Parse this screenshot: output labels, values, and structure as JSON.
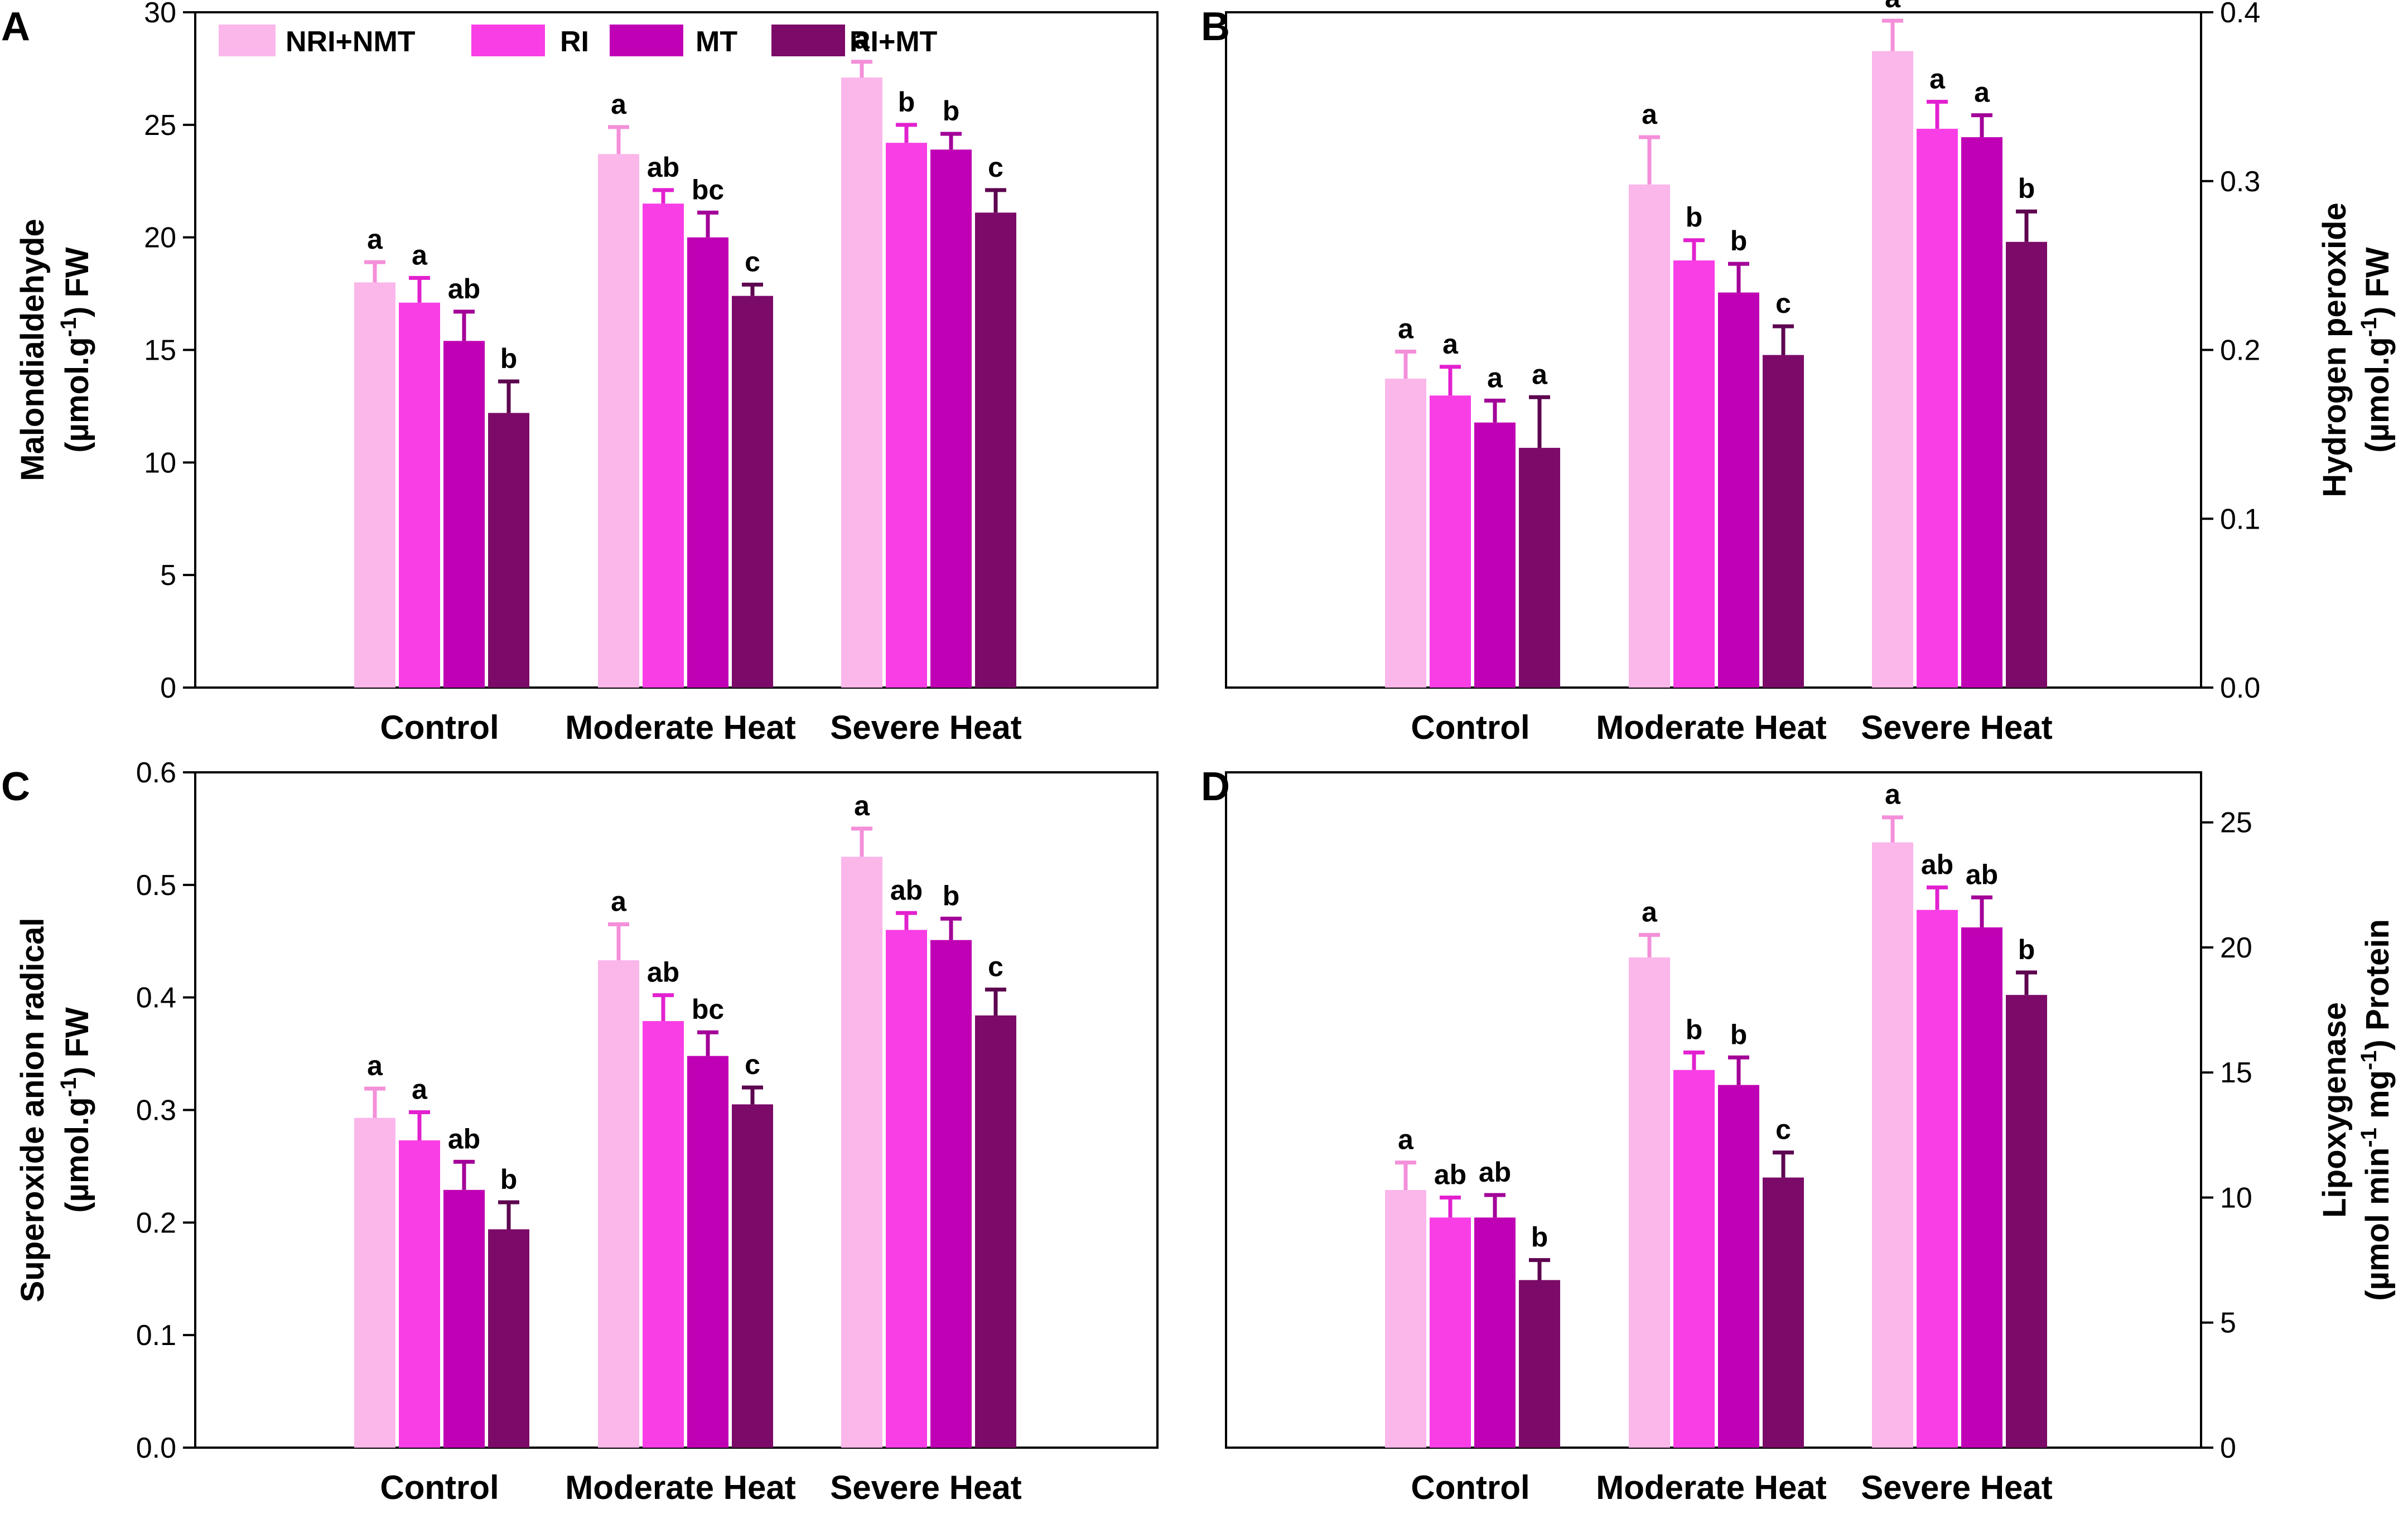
{
  "legend": [
    "NRI+NMT",
    "RI",
    "MT",
    "RI+MT"
  ],
  "chart_data": [
    {
      "panel": "A",
      "type": "bar",
      "categories": [
        "Control",
        "Moderate Heat",
        "Severe Heat"
      ],
      "series": [
        {
          "name": "NRI+NMT",
          "values": [
            18.0,
            23.7,
            27.1
          ],
          "errors": [
            0.9,
            1.2,
            0.7
          ],
          "labels": [
            "a",
            "a",
            "a"
          ]
        },
        {
          "name": "RI",
          "values": [
            17.1,
            21.5,
            24.2
          ],
          "errors": [
            1.1,
            0.6,
            0.8
          ],
          "labels": [
            "a",
            "ab",
            "b"
          ]
        },
        {
          "name": "MT",
          "values": [
            15.4,
            20.0,
            23.9
          ],
          "errors": [
            1.3,
            1.1,
            0.7
          ],
          "labels": [
            "ab",
            "bc",
            "b"
          ]
        },
        {
          "name": "RI+MT",
          "values": [
            12.2,
            17.4,
            21.1
          ],
          "errors": [
            1.4,
            0.5,
            1.0
          ],
          "labels": [
            "b",
            "c",
            "c"
          ]
        }
      ],
      "ylabel": "Malondialdehyde",
      "ylabel_unit": {
        "pre": "(µmol.g",
        "sup": "-1",
        "post": ") FW"
      },
      "ylim": [
        0,
        30
      ],
      "yticks": [
        0,
        5,
        10,
        15,
        20,
        25,
        30
      ],
      "ytick_labels": [
        "0",
        "5",
        "10",
        "15",
        "20",
        "25",
        "30"
      ],
      "yaxis_side": "left"
    },
    {
      "panel": "B",
      "type": "bar",
      "categories": [
        "Control",
        "Moderate Heat",
        "Severe Heat"
      ],
      "series": [
        {
          "name": "NRI+NMT",
          "values": [
            0.183,
            0.298,
            0.377
          ],
          "errors": [
            0.016,
            0.028,
            0.018
          ],
          "labels": [
            "a",
            "a",
            "a"
          ]
        },
        {
          "name": "RI",
          "values": [
            0.173,
            0.253,
            0.331
          ],
          "errors": [
            0.017,
            0.012,
            0.016
          ],
          "labels": [
            "a",
            "b",
            "a"
          ]
        },
        {
          "name": "MT",
          "values": [
            0.157,
            0.234,
            0.326
          ],
          "errors": [
            0.013,
            0.017,
            0.013
          ],
          "labels": [
            "a",
            "b",
            "a"
          ]
        },
        {
          "name": "RI+MT",
          "values": [
            0.142,
            0.197,
            0.264
          ],
          "errors": [
            0.03,
            0.017,
            0.018
          ],
          "labels": [
            "a",
            "c",
            "b"
          ]
        }
      ],
      "ylabel": "Hydrogen peroxide",
      "ylabel_unit": {
        "pre": "(µmol.g",
        "sup": "-1",
        "post": ") FW"
      },
      "ylim": [
        0,
        0.4
      ],
      "yticks": [
        0,
        0.1,
        0.2,
        0.3,
        0.4
      ],
      "ytick_labels": [
        "0.0",
        "0.1",
        "0.2",
        "0.3",
        "0.4"
      ],
      "yaxis_side": "right"
    },
    {
      "panel": "C",
      "type": "bar",
      "categories": [
        "Control",
        "Moderate Heat",
        "Severe Heat"
      ],
      "series": [
        {
          "name": "NRI+NMT",
          "values": [
            0.293,
            0.433,
            0.525
          ],
          "errors": [
            0.026,
            0.032,
            0.025
          ],
          "labels": [
            "a",
            "a",
            "a"
          ]
        },
        {
          "name": "RI",
          "values": [
            0.273,
            0.379,
            0.46
          ],
          "errors": [
            0.025,
            0.023,
            0.015
          ],
          "labels": [
            "a",
            "ab",
            "ab"
          ]
        },
        {
          "name": "MT",
          "values": [
            0.229,
            0.348,
            0.451
          ],
          "errors": [
            0.025,
            0.021,
            0.019
          ],
          "labels": [
            "ab",
            "bc",
            "b"
          ]
        },
        {
          "name": "RI+MT",
          "values": [
            0.194,
            0.305,
            0.384
          ],
          "errors": [
            0.024,
            0.015,
            0.023
          ],
          "labels": [
            "b",
            "c",
            "c"
          ]
        }
      ],
      "ylabel": "Superoxide anion radical",
      "ylabel_unit": {
        "pre": "(µmol.g",
        "sup": "-1",
        "post": ") FW"
      },
      "ylim": [
        0,
        0.6
      ],
      "yticks": [
        0,
        0.1,
        0.2,
        0.3,
        0.4,
        0.5,
        0.6
      ],
      "ytick_labels": [
        "0.0",
        "0.1",
        "0.2",
        "0.3",
        "0.4",
        "0.5",
        "0.6"
      ],
      "yaxis_side": "left"
    },
    {
      "panel": "D",
      "type": "bar",
      "categories": [
        "Control",
        "Moderate Heat",
        "Severe Heat"
      ],
      "series": [
        {
          "name": "NRI+NMT",
          "values": [
            10.3,
            19.6,
            24.2
          ],
          "errors": [
            1.1,
            0.9,
            1.0
          ],
          "labels": [
            "a",
            "a",
            "a"
          ]
        },
        {
          "name": "RI",
          "values": [
            9.2,
            15.1,
            21.5
          ],
          "errors": [
            0.8,
            0.7,
            0.9
          ],
          "labels": [
            "ab",
            "b",
            "ab"
          ]
        },
        {
          "name": "MT",
          "values": [
            9.2,
            14.5,
            20.8
          ],
          "errors": [
            0.9,
            1.1,
            1.2
          ],
          "labels": [
            "ab",
            "b",
            "ab"
          ]
        },
        {
          "name": "RI+MT",
          "values": [
            6.7,
            10.8,
            18.1
          ],
          "errors": [
            0.8,
            1.0,
            0.9
          ],
          "labels": [
            "b",
            "c",
            "b"
          ]
        }
      ],
      "ylabel": "Lipoxygenase",
      "ylabel_unit": {
        "pre": "(µmol min",
        "sup": "-1",
        "mid": " mg",
        "sup2": "-1",
        "post": ") Protein"
      },
      "ylim": [
        0,
        27
      ],
      "yticks": [
        0,
        5,
        10,
        15,
        20,
        25
      ],
      "ytick_labels": [
        "0",
        "5",
        "10",
        "15",
        "20",
        "25"
      ],
      "yaxis_side": "right"
    }
  ],
  "colors": [
    "#fbb6ea",
    "#f93ee6",
    "#c000b4",
    "#7c0a68"
  ],
  "error_colors": [
    "#f48fd9",
    "#e321d0",
    "#a30098",
    "#5e0550"
  ]
}
